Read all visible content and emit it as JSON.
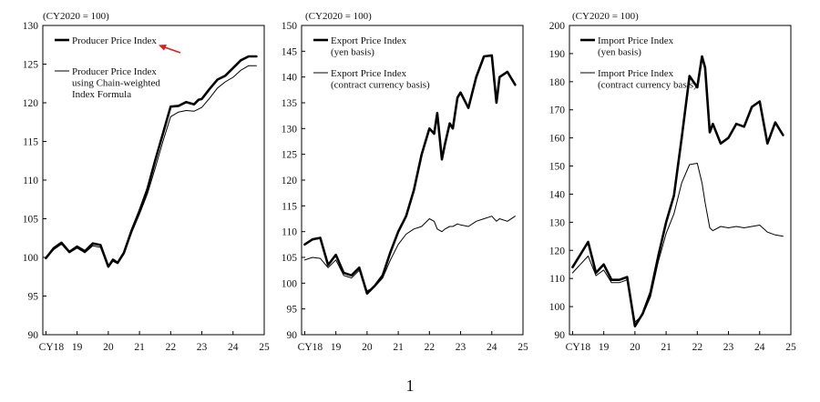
{
  "page_number": "1",
  "chart_data": [
    {
      "type": "line",
      "unit_note": "(CY2020 = 100)",
      "x_tick_labels": [
        "CY18",
        "19",
        "20",
        "21",
        "22",
        "23",
        "24",
        "25"
      ],
      "ylim": [
        90,
        130
      ],
      "y_ticks": [
        90,
        95,
        100,
        105,
        110,
        115,
        120,
        125,
        130
      ],
      "grid": false,
      "legend_position": "top-left",
      "x": [
        2018.0,
        2018.25,
        2018.5,
        2018.75,
        2019.0,
        2019.25,
        2019.5,
        2019.75,
        2020.0,
        2020.15,
        2020.3,
        2020.5,
        2020.75,
        2021.0,
        2021.25,
        2021.5,
        2021.75,
        2022.0,
        2022.25,
        2022.5,
        2022.75,
        2022.9,
        2023.0,
        2023.25,
        2023.5,
        2023.75,
        2024.0,
        2024.25,
        2024.5,
        2024.75
      ],
      "series": [
        {
          "name": "Producer Price Index",
          "color": "#000000",
          "width": 2.6,
          "values": [
            99.9,
            101.2,
            101.9,
            100.7,
            101.4,
            100.8,
            101.8,
            101.6,
            98.8,
            99.7,
            99.3,
            100.6,
            103.5,
            106.0,
            108.8,
            112.5,
            116.0,
            119.5,
            119.6,
            120.1,
            119.8,
            120.4,
            120.5,
            121.8,
            123.0,
            123.5,
            124.5,
            125.5,
            126.0,
            126.0
          ]
        },
        {
          "name": "Producer Price Index using Chain-weighted Index Formula",
          "color": "#000000",
          "width": 1.0,
          "values": [
            99.9,
            101.0,
            101.7,
            100.6,
            101.2,
            100.6,
            101.5,
            101.3,
            98.7,
            99.5,
            99.2,
            100.4,
            103.2,
            105.6,
            108.2,
            111.5,
            115.0,
            118.2,
            118.8,
            119.0,
            118.9,
            119.2,
            119.4,
            120.6,
            121.9,
            122.7,
            123.3,
            124.2,
            124.8,
            124.8
          ]
        }
      ],
      "legend": [
        {
          "lines": [
            "Producer Price Index"
          ],
          "width": 2.6
        },
        {
          "lines": [
            "Producer Price Index",
            "using Chain-weighted",
            "Index Formula"
          ],
          "width": 1.0
        }
      ],
      "annotation": "red arrow pointing to legend entry",
      "annotation_color": "#d42020"
    },
    {
      "type": "line",
      "unit_note": "(CY2020 = 100)",
      "x_tick_labels": [
        "CY18",
        "19",
        "20",
        "21",
        "22",
        "23",
        "24",
        "25"
      ],
      "ylim": [
        90,
        150
      ],
      "y_ticks": [
        90,
        95,
        100,
        105,
        110,
        115,
        120,
        125,
        130,
        135,
        140,
        145,
        150
      ],
      "grid": false,
      "legend_position": "top-left",
      "x": [
        2018.0,
        2018.25,
        2018.5,
        2018.75,
        2019.0,
        2019.25,
        2019.5,
        2019.75,
        2020.0,
        2020.25,
        2020.5,
        2020.75,
        2021.0,
        2021.25,
        2021.5,
        2021.75,
        2022.0,
        2022.15,
        2022.25,
        2022.4,
        2022.5,
        2022.65,
        2022.75,
        2022.9,
        2023.0,
        2023.25,
        2023.5,
        2023.75,
        2024.0,
        2024.15,
        2024.25,
        2024.5,
        2024.75
      ],
      "series": [
        {
          "name": "Export Price Index (yen basis)",
          "color": "#000000",
          "width": 2.6,
          "values": [
            107.5,
            108.5,
            108.8,
            103.5,
            105.5,
            102.0,
            101.5,
            103.0,
            98.0,
            99.5,
            101.5,
            106.0,
            110.0,
            113.0,
            118.0,
            125.0,
            130.0,
            129.0,
            133.0,
            124.0,
            127.0,
            131.0,
            130.0,
            136.0,
            137.0,
            134.0,
            140.0,
            144.0,
            144.2,
            135.0,
            140.0,
            141.0,
            138.5
          ]
        },
        {
          "name": "Export Price Index (contract currency basis)",
          "color": "#000000",
          "width": 1.0,
          "values": [
            104.5,
            105.0,
            104.8,
            103.0,
            104.5,
            101.5,
            101.0,
            102.5,
            98.5,
            99.3,
            101.0,
            104.5,
            107.5,
            109.5,
            110.5,
            111.0,
            112.5,
            112.0,
            110.5,
            110.0,
            110.5,
            111.0,
            111.0,
            111.5,
            111.3,
            111.0,
            112.0,
            112.5,
            113.0,
            112.0,
            112.5,
            112.0,
            113.0
          ]
        }
      ],
      "legend": [
        {
          "lines": [
            "Export Price Index",
            "(yen basis)"
          ],
          "width": 2.6
        },
        {
          "lines": [
            "Export Price Index",
            "(contract currency basis)"
          ],
          "width": 1.0
        }
      ]
    },
    {
      "type": "line",
      "unit_note": "(CY2020 = 100)",
      "x_tick_labels": [
        "CY18",
        "19",
        "20",
        "21",
        "22",
        "23",
        "24",
        "25"
      ],
      "ylim": [
        90,
        200
      ],
      "y_ticks": [
        90,
        100,
        110,
        120,
        130,
        140,
        150,
        160,
        170,
        180,
        190,
        200
      ],
      "grid": false,
      "legend_position": "top-left",
      "x": [
        2018.0,
        2018.25,
        2018.5,
        2018.75,
        2019.0,
        2019.25,
        2019.5,
        2019.75,
        2020.0,
        2020.25,
        2020.5,
        2020.75,
        2021.0,
        2021.25,
        2021.5,
        2021.75,
        2022.0,
        2022.15,
        2022.25,
        2022.4,
        2022.5,
        2022.75,
        2023.0,
        2023.25,
        2023.5,
        2023.75,
        2024.0,
        2024.25,
        2024.5,
        2024.75
      ],
      "series": [
        {
          "name": "Import Price Index (yen basis)",
          "color": "#000000",
          "width": 2.6,
          "values": [
            114.0,
            118.5,
            123.0,
            112.0,
            115.0,
            109.5,
            109.5,
            110.5,
            93.0,
            97.5,
            105.0,
            118.0,
            130.0,
            139.5,
            160.0,
            182.0,
            178.0,
            189.0,
            185.0,
            162.0,
            165.0,
            158.0,
            160.0,
            165.0,
            164.0,
            171.0,
            173.0,
            158.0,
            165.5,
            161.0
          ]
        },
        {
          "name": "Import Price Index (contract currency basis)",
          "color": "#000000",
          "width": 1.0,
          "values": [
            112.0,
            115.0,
            118.0,
            111.0,
            113.0,
            108.5,
            108.5,
            109.5,
            94.5,
            97.0,
            103.5,
            116.0,
            126.0,
            133.0,
            144.0,
            150.5,
            151.0,
            144.0,
            137.0,
            128.0,
            127.0,
            128.5,
            128.0,
            128.5,
            128.0,
            128.5,
            129.0,
            126.5,
            125.5,
            125.0
          ]
        }
      ],
      "legend": [
        {
          "lines": [
            "Import Price Index",
            "(yen basis)"
          ],
          "width": 2.6
        },
        {
          "lines": [
            "Import Price Index",
            "(contract currency basis)"
          ],
          "width": 1.0
        }
      ]
    }
  ]
}
